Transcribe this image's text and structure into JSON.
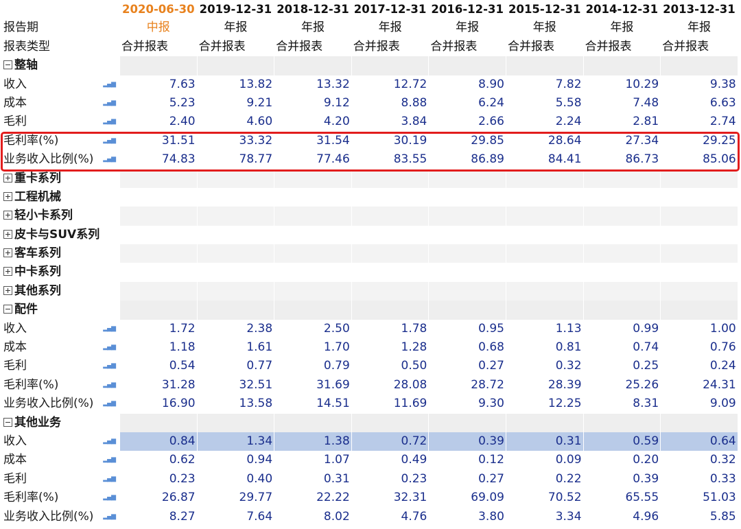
{
  "columns": [
    "2020-06-30",
    "2019-12-31",
    "2018-12-31",
    "2017-12-31",
    "2016-12-31",
    "2015-12-31",
    "2014-12-31",
    "2013-12-31"
  ],
  "report_period": {
    "label": "报告期",
    "values": [
      "中报",
      "年报",
      "年报",
      "年报",
      "年报",
      "年报",
      "年报",
      "年报"
    ]
  },
  "report_type": {
    "label": "报表类型",
    "values": [
      "合并报表",
      "合并报表",
      "合并报表",
      "合并报表",
      "合并报表",
      "合并报表",
      "合并报表",
      "合并报表"
    ]
  },
  "sections": [
    {
      "title": "整轴",
      "expanded": true,
      "rows": [
        {
          "label": "收入",
          "values": [
            "7.63",
            "13.82",
            "13.32",
            "12.72",
            "8.90",
            "7.82",
            "10.29",
            "9.38"
          ]
        },
        {
          "label": "成本",
          "values": [
            "5.23",
            "9.21",
            "9.12",
            "8.88",
            "6.24",
            "5.58",
            "7.48",
            "6.63"
          ]
        },
        {
          "label": "毛利",
          "values": [
            "2.40",
            "4.60",
            "4.20",
            "3.84",
            "2.66",
            "2.24",
            "2.81",
            "2.74"
          ]
        },
        {
          "label": "毛利率(%)",
          "values": [
            "31.51",
            "33.32",
            "31.54",
            "30.19",
            "29.85",
            "28.64",
            "27.34",
            "29.25"
          ]
        },
        {
          "label": "业务收入比例(%)",
          "values": [
            "74.83",
            "78.77",
            "77.46",
            "83.55",
            "86.89",
            "84.41",
            "86.73",
            "85.06"
          ]
        }
      ]
    },
    {
      "title": "重卡系列",
      "expanded": false
    },
    {
      "title": "工程机械",
      "expanded": false
    },
    {
      "title": "轻小卡系列",
      "expanded": false
    },
    {
      "title": "皮卡与SUV系列",
      "expanded": false
    },
    {
      "title": "客车系列",
      "expanded": false
    },
    {
      "title": "中卡系列",
      "expanded": false
    },
    {
      "title": "其他系列",
      "expanded": false
    },
    {
      "title": "配件",
      "expanded": true,
      "rows": [
        {
          "label": "收入",
          "values": [
            "1.72",
            "2.38",
            "2.50",
            "1.78",
            "0.95",
            "1.13",
            "0.99",
            "1.00"
          ]
        },
        {
          "label": "成本",
          "values": [
            "1.18",
            "1.61",
            "1.70",
            "1.28",
            "0.68",
            "0.81",
            "0.74",
            "0.76"
          ]
        },
        {
          "label": "毛利",
          "values": [
            "0.54",
            "0.77",
            "0.79",
            "0.50",
            "0.27",
            "0.32",
            "0.25",
            "0.24"
          ]
        },
        {
          "label": "毛利率(%)",
          "values": [
            "31.28",
            "32.51",
            "31.69",
            "28.08",
            "28.72",
            "28.39",
            "25.26",
            "24.31"
          ]
        },
        {
          "label": "业务收入比例(%)",
          "values": [
            "16.90",
            "13.58",
            "14.51",
            "11.69",
            "9.30",
            "12.25",
            "8.31",
            "9.09"
          ]
        }
      ]
    },
    {
      "title": "其他业务",
      "expanded": true,
      "rows": [
        {
          "label": "收入",
          "values": [
            "0.84",
            "1.34",
            "1.38",
            "0.72",
            "0.39",
            "0.31",
            "0.59",
            "0.64"
          ],
          "selected": true
        },
        {
          "label": "成本",
          "values": [
            "0.62",
            "0.94",
            "1.07",
            "0.49",
            "0.12",
            "0.09",
            "0.20",
            "0.32"
          ]
        },
        {
          "label": "毛利",
          "values": [
            "0.23",
            "0.40",
            "0.31",
            "0.23",
            "0.27",
            "0.22",
            "0.39",
            "0.33"
          ]
        },
        {
          "label": "毛利率(%)",
          "values": [
            "26.87",
            "29.77",
            "22.22",
            "32.31",
            "69.09",
            "70.52",
            "65.55",
            "51.03"
          ]
        },
        {
          "label": "业务收入比例(%)",
          "values": [
            "8.27",
            "7.64",
            "8.02",
            "4.76",
            "3.80",
            "3.34",
            "4.96",
            "5.85"
          ]
        }
      ]
    }
  ],
  "colors": {
    "current_period": "#e8821e",
    "value_text": "#1a2e8c",
    "highlight_border": "#e21d1d",
    "selected_row": "#b9cbe8",
    "chart_icon": "#5a8fd6"
  },
  "icons": {
    "chart": "bar-chart-icon",
    "expand": "plus-box-icon",
    "collapse": "minus-box-icon"
  }
}
